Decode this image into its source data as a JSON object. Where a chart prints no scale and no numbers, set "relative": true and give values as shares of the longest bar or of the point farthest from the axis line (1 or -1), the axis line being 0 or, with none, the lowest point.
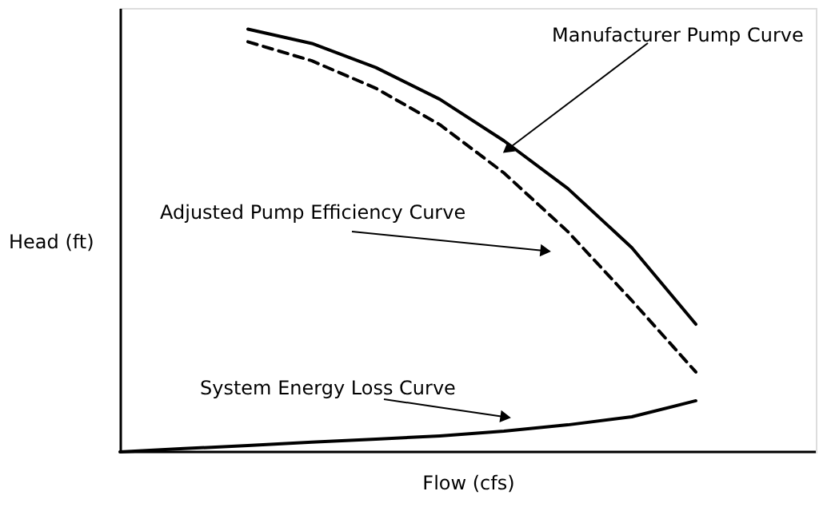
{
  "chart_data": {
    "type": "line",
    "relative": true,
    "xlabel": "Flow (cfs)",
    "ylabel": "Head (ft)",
    "grid": false,
    "marker": "none",
    "categories": [
      null,
      null,
      null,
      null,
      null,
      null,
      null,
      null,
      null,
      null
    ],
    "series": [
      {
        "color": "#000000",
        "line_style": "solid",
        "values": [
          null,
          null,
          1,
          0.966,
          0.909,
          0.834,
          0.736,
          0.623,
          0.483,
          0.302
        ]
      },
      {
        "color": "#000000",
        "line_style": "dashed",
        "values": [
          null,
          null,
          0.97,
          0.925,
          0.86,
          0.774,
          0.66,
          0.521,
          0.358,
          0.189
        ]
      },
      {
        "color": "#000000",
        "line_style": "solid",
        "values": [
          0,
          0.008,
          0.015,
          0.023,
          0.03,
          0.038,
          0.049,
          0.064,
          0.083,
          0.121
        ]
      }
    ],
    "annotations": [
      "Manufacturer Pump Curve",
      "Adjusted Pump Efficiency Curve",
      "System Energy Loss Curve"
    ]
  }
}
